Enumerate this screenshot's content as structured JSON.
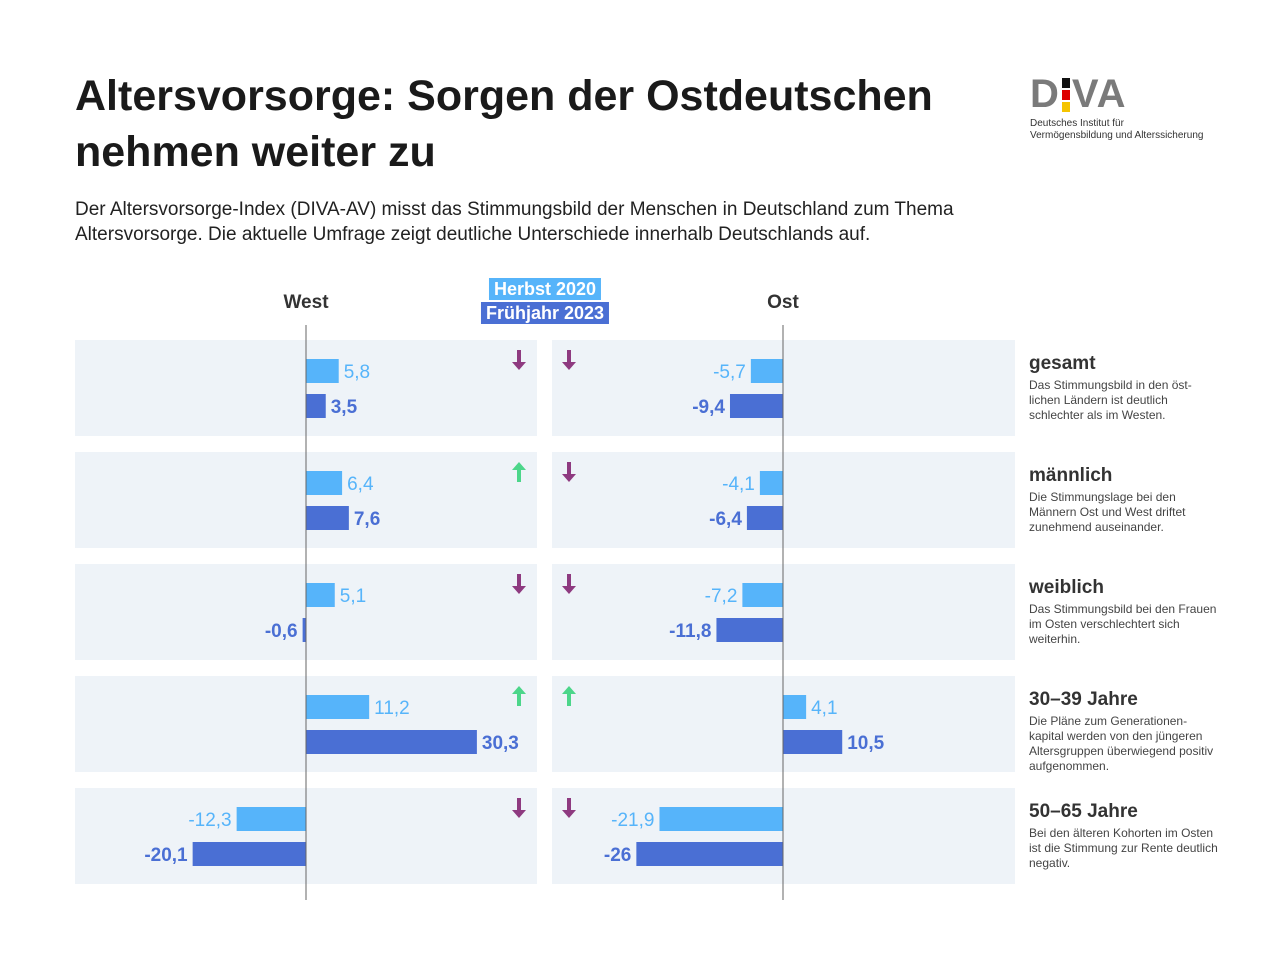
{
  "header": {
    "title": "Altersvorsorge: Sorgen der Ostdeutschen nehmen weiter zu",
    "subtitle": "Der Altersvorsorge-Index (DIVA-AV) misst das Stimmungsbild der Menschen in Deutschland zum Thema Altersvorsorge. Die aktuelle Umfrage zeigt deutliche Unterschiede innerhalb Deutschlands auf."
  },
  "logo": {
    "text": "DIVA",
    "line1": "Deutsches Institut für",
    "line2": "Vermögensbildung und Alterssicherung"
  },
  "colors": {
    "herbst2020": "#56b4fa",
    "fruehjahr2023": "#4a6fd4",
    "down": "#8e3a80",
    "up": "#4cd68a",
    "panel": "#eef3f8"
  },
  "chart_data": {
    "type": "bar",
    "orientation": "horizontal",
    "panels": [
      "West",
      "Ost"
    ],
    "legend": [
      "Herbst 2020",
      "Frühjahr 2023"
    ],
    "categories": [
      "gesamt",
      "männlich",
      "weiblich",
      "30–39 Jahre",
      "50–65 Jahre"
    ],
    "descriptions": [
      "Das Stimmungsbild in den öst-lichen Ländern ist deutlich schlechter als im Westen.",
      "Die Stimmungslage bei den Männern Ost und West driftet zunehmend auseinander.",
      "Das Stimmungsbild bei den Frauen im Osten verschlechtert sich weiterhin.",
      "Die Pläne zum Generationen-kapital werden von den jüngeren Altersgruppen überwiegend positiv aufgenommen.",
      "Bei den älteren Kohorten im Osten ist die Stimmung zur Rente deutlich negativ."
    ],
    "series": [
      {
        "name": "Herbst 2020",
        "west": [
          5.8,
          6.4,
          5.1,
          11.2,
          -12.3
        ],
        "ost": [
          -5.7,
          -4.1,
          -7.2,
          4.1,
          -21.9
        ],
        "west_labels": [
          "5,8",
          "6,4",
          "5,1",
          "11,2",
          "-12,3"
        ],
        "ost_labels": [
          "-5,7",
          "-4,1",
          "-7,2",
          "4,1",
          "-21,9"
        ]
      },
      {
        "name": "Frühjahr 2023",
        "west": [
          3.5,
          7.6,
          -0.6,
          30.3,
          -20.1
        ],
        "ost": [
          -9.4,
          -6.4,
          -11.8,
          10.5,
          -26
        ],
        "west_labels": [
          "3,5",
          "7,6",
          "-0,6",
          "30,3",
          "-20,1"
        ],
        "ost_labels": [
          "-9,4",
          "-6,4",
          "-11,8",
          "10,5",
          "-26"
        ]
      }
    ],
    "trend_west": [
      "down",
      "up",
      "down",
      "up",
      "down"
    ],
    "trend_ost": [
      "down",
      "down",
      "down",
      "up",
      "down"
    ]
  }
}
